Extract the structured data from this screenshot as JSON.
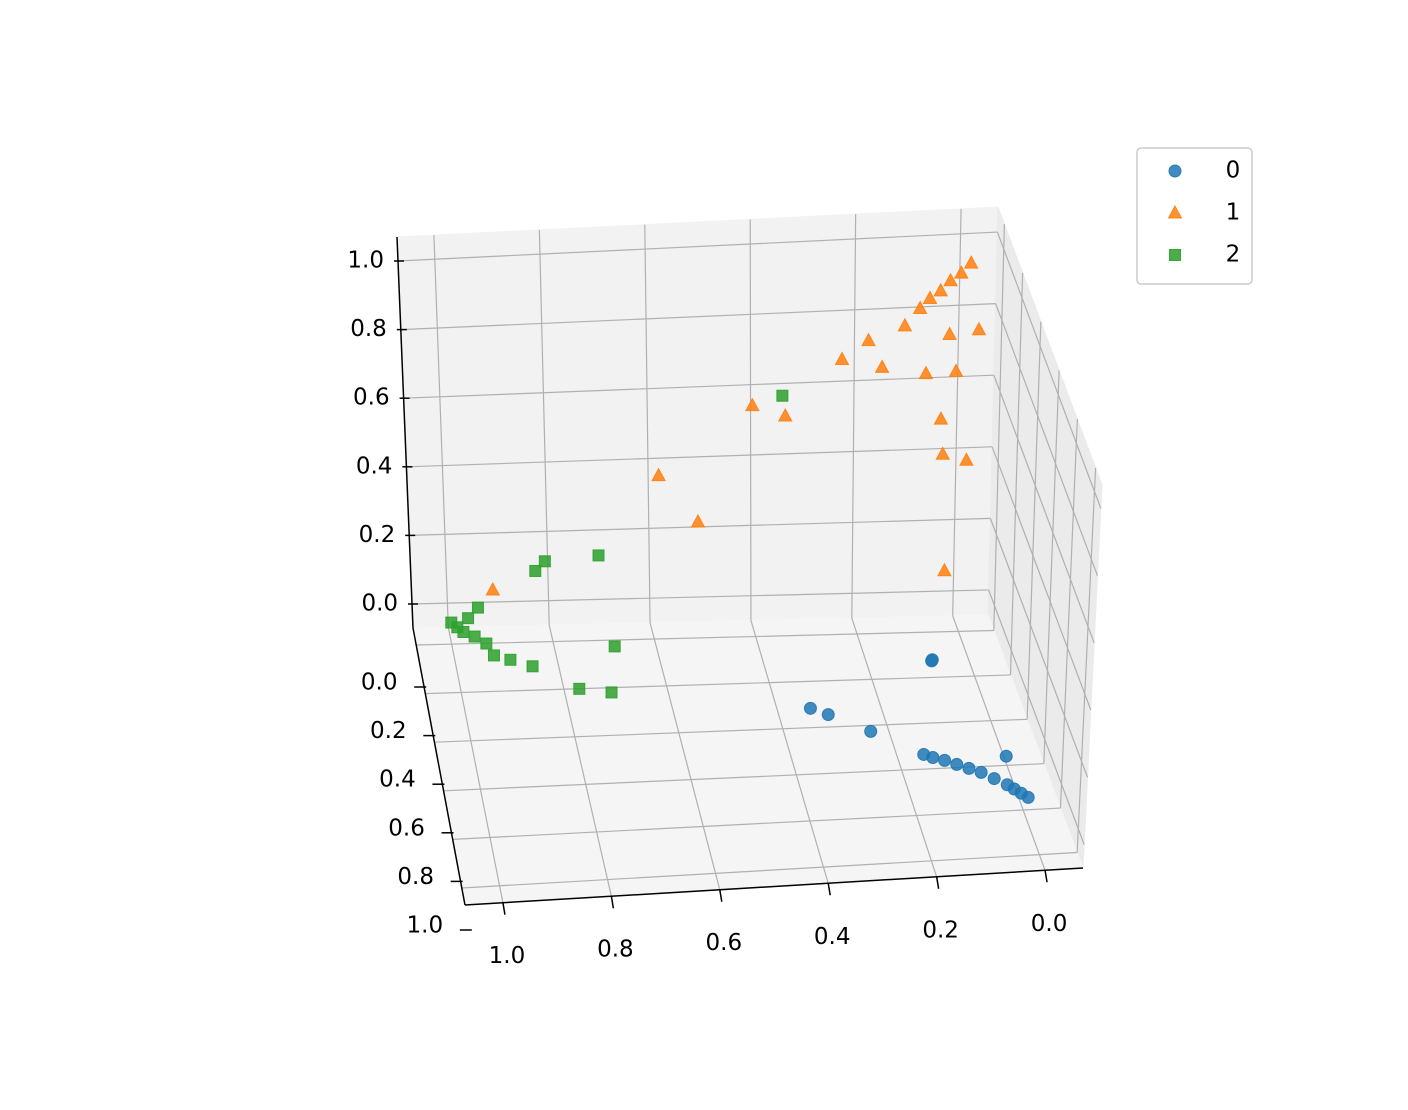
{
  "chart_data": {
    "type": "scatter3d",
    "series": [
      {
        "name": "0",
        "color": "#1f77b4",
        "marker": "circle",
        "x": [
          0.165,
          0.15,
          0.13,
          0.11,
          0.09,
          0.07,
          0.05,
          0.03,
          0.02,
          0.01,
          0.0,
          0.013,
          0.088,
          0.09,
          0.32,
          0.35,
          0.25
        ],
        "y": [
          0.64,
          0.655,
          0.67,
          0.69,
          0.71,
          0.73,
          0.76,
          0.79,
          0.81,
          0.83,
          0.85,
          0.665,
          0.23,
          0.235,
          0.45,
          0.42,
          0.53
        ],
        "z": [
          0,
          0,
          0,
          0,
          0,
          0,
          0,
          0,
          0,
          0,
          0,
          0,
          0,
          0,
          0,
          0,
          0
        ]
      },
      {
        "name": "1",
        "color": "#ff7f0e",
        "marker": "triangle",
        "x": [
          0.0,
          0.02,
          0.04,
          0.06,
          0.08,
          0.1,
          0.0,
          0.05,
          0.13,
          0.2,
          0.25,
          0.18,
          0.1,
          0.05,
          0.08,
          0.08,
          0.04,
          0.42,
          0.36,
          0.6,
          0.53,
          0.08,
          0.92
        ],
        "y": [
          0.05,
          0.06,
          0.06,
          0.07,
          0.07,
          0.08,
          0.15,
          0.12,
          0.09,
          0.1,
          0.1,
          0.14,
          0.16,
          0.2,
          0.22,
          0.25,
          0.28,
          0.1,
          0.12,
          0.1,
          0.14,
          0.3,
          0.05
        ],
        "z": [
          1.0,
          0.98,
          0.96,
          0.94,
          0.92,
          0.9,
          0.88,
          0.85,
          0.86,
          0.83,
          0.78,
          0.78,
          0.77,
          0.8,
          0.68,
          0.6,
          0.6,
          0.66,
          0.64,
          0.47,
          0.36,
          0.3,
          0.12
        ]
      },
      {
        "name": "2",
        "color": "#2ca02c",
        "marker": "square",
        "x": [
          0.37,
          0.82,
          0.84,
          0.72,
          0.95,
          0.97,
          0.94,
          0.93,
          0.9,
          0.86,
          0.7,
          0.78,
          0.72,
          0.99,
          0.98,
          0.96,
          1.0
        ],
        "y": [
          0.15,
          0.08,
          0.09,
          0.12,
          0.05,
          0.05,
          0.1,
          0.15,
          0.17,
          0.2,
          0.2,
          0.3,
          0.32,
          0.03,
          0.05,
          0.07,
          0.01
        ],
        "z": [
          0.72,
          0.22,
          0.2,
          0.26,
          0.07,
          0.04,
          0.0,
          0.0,
          0.0,
          0.0,
          0.05,
          0.0,
          0.0,
          0.0,
          0.0,
          0.0,
          0.0
        ]
      }
    ],
    "xlim": [
      -0.07,
      1.07
    ],
    "ylim": [
      -0.07,
      1.07
    ],
    "zlim": [
      -0.07,
      1.07
    ],
    "xticks": [
      {
        "value": 0,
        "label": "0.0"
      },
      {
        "value": 0.2,
        "label": "0.2"
      },
      {
        "value": 0.4,
        "label": "0.4"
      },
      {
        "value": 0.6,
        "label": "0.6"
      },
      {
        "value": 0.8,
        "label": "0.8"
      },
      {
        "value": 1,
        "label": "1.0"
      }
    ],
    "yticks": [
      {
        "value": 0,
        "label": "0.0"
      },
      {
        "value": 0.2,
        "label": "0.2"
      },
      {
        "value": 0.4,
        "label": "0.4"
      },
      {
        "value": 0.6,
        "label": "0.6"
      },
      {
        "value": 0.8,
        "label": "0.8"
      },
      {
        "value": 1,
        "label": "1.0"
      }
    ],
    "zticks": [
      {
        "value": 0,
        "label": "0.0"
      },
      {
        "value": 0.2,
        "label": "0.2"
      },
      {
        "value": 0.4,
        "label": "0.4"
      },
      {
        "value": 0.6,
        "label": "0.6"
      },
      {
        "value": 0.8,
        "label": "0.8"
      },
      {
        "value": 1,
        "label": "1.0"
      }
    ],
    "grid": true,
    "legend": "upper right"
  }
}
